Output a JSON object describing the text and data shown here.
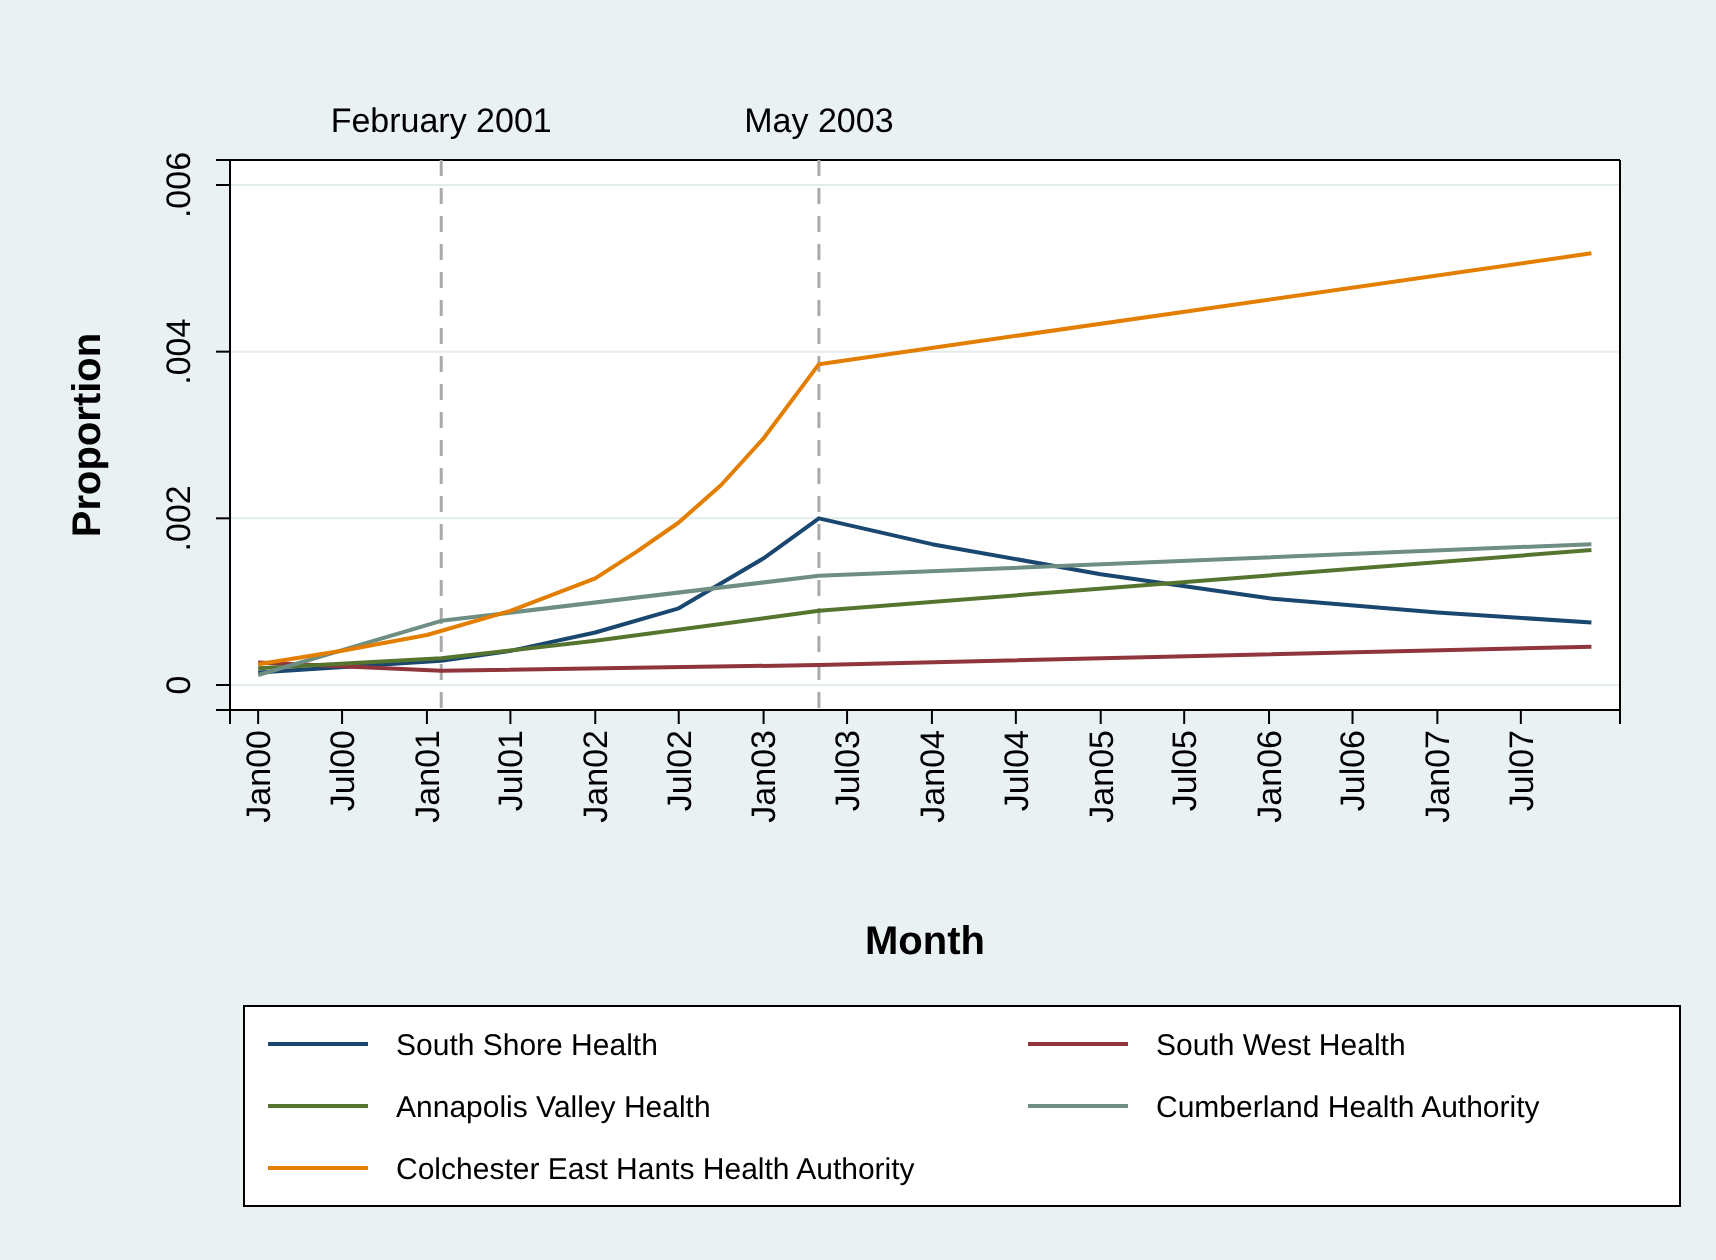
{
  "chart_data": {
    "type": "line",
    "xlabel": "Month",
    "ylabel": "Proportion",
    "xlim": [
      "1999-11",
      "2008-02"
    ],
    "ylim": [
      -0.0003,
      0.0063
    ],
    "xticks": [
      {
        "value": "2000-01",
        "label": "Jan00"
      },
      {
        "value": "2000-07",
        "label": "Jul00"
      },
      {
        "value": "2001-01",
        "label": "Jan01"
      },
      {
        "value": "2001-07",
        "label": "Jul01"
      },
      {
        "value": "2002-01",
        "label": "Jan02"
      },
      {
        "value": "2002-07",
        "label": "Jul02"
      },
      {
        "value": "2003-01",
        "label": "Jan03"
      },
      {
        "value": "2003-07",
        "label": "Jul03"
      },
      {
        "value": "2004-01",
        "label": "Jan04"
      },
      {
        "value": "2004-07",
        "label": "Jul04"
      },
      {
        "value": "2005-01",
        "label": "Jan05"
      },
      {
        "value": "2005-07",
        "label": "Jul05"
      },
      {
        "value": "2006-01",
        "label": "Jan06"
      },
      {
        "value": "2006-07",
        "label": "Jul06"
      },
      {
        "value": "2007-01",
        "label": "Jan07"
      },
      {
        "value": "2007-07",
        "label": "Jul07"
      }
    ],
    "yticks": [
      0,
      {
        "value": 0.002,
        "label": ".002"
      },
      {
        "value": 0.004,
        "label": ".004"
      },
      {
        "value": 0.006,
        "label": ".006"
      }
    ],
    "grid": "y",
    "legend": "bottom",
    "ref_lines": [
      {
        "axis": "x",
        "value": "2001-02",
        "label": "February 2001",
        "color": "#aaaaaa",
        "line_style": "dashed"
      },
      {
        "axis": "x",
        "value": "2003-05",
        "label": "May 2003",
        "color": "#aaaaaa",
        "line_style": "dashed"
      }
    ],
    "series": [
      {
        "name": "South Shore Health",
        "color": "#1a476f",
        "x": [
          "2000-01",
          "2001-02",
          "2001-07",
          "2002-01",
          "2002-07",
          "2003-01",
          "2003-05",
          "2004-01",
          "2005-01",
          "2006-01",
          "2007-01",
          "2007-12"
        ],
        "values": [
          0.00015,
          0.00029,
          0.00041,
          0.00063,
          0.00092,
          0.00152,
          0.002,
          0.00169,
          0.00133,
          0.00104,
          0.00087,
          0.00075
        ]
      },
      {
        "name": "South West Health",
        "color": "#90353b",
        "x": [
          "2000-01",
          "2001-02",
          "2003-05",
          "2007-12"
        ],
        "values": [
          0.00027,
          0.00017,
          0.00024,
          0.00046
        ]
      },
      {
        "name": "Annapolis Valley Health",
        "color": "#55752f",
        "x": [
          "2000-01",
          "2001-02",
          "2002-01",
          "2003-05",
          "2007-12"
        ],
        "values": [
          0.0002,
          0.00032,
          0.00053,
          0.00089,
          0.00162
        ]
      },
      {
        "name": "Cumberland Health Authority",
        "color": "#6e8e84",
        "x": [
          "2000-01",
          "2001-02",
          "2003-05",
          "2007-12"
        ],
        "values": [
          0.00012,
          0.00077,
          0.00131,
          0.00169
        ]
      },
      {
        "name": "Colchester East Hants Health Authority",
        "color": "#e37e00",
        "x": [
          "2000-01",
          "2000-07",
          "2001-01",
          "2001-07",
          "2002-01",
          "2002-04",
          "2002-07",
          "2002-10",
          "2003-01",
          "2003-05",
          "2007-12"
        ],
        "values": [
          0.00025,
          0.00041,
          0.0006,
          0.00089,
          0.00128,
          0.0016,
          0.00195,
          0.0024,
          0.00296,
          0.00385,
          0.00518
        ]
      }
    ]
  }
}
